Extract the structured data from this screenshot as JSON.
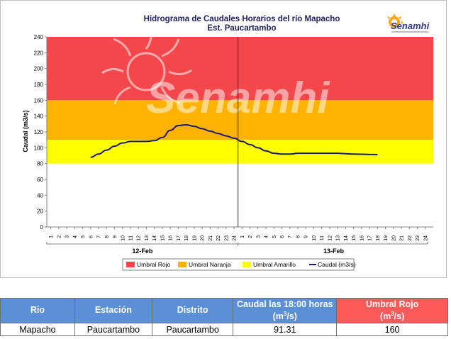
{
  "chart_data": {
    "type": "line",
    "title": "Hidrograma de Caudales Horarios del río Mapacho",
    "subtitle": "Est. Paucartambo",
    "ylabel": "Caudal  (m3/s)",
    "ylim": [
      0,
      240
    ],
    "yticks": [
      0,
      20,
      40,
      60,
      80,
      100,
      120,
      140,
      160,
      180,
      200,
      220,
      240
    ],
    "days": [
      {
        "label": "12-Feb",
        "hours": [
          "1",
          "2",
          "3",
          "4",
          "5",
          "6",
          "7",
          "8",
          "9",
          "10",
          "11",
          "12",
          "13",
          "14",
          "15",
          "16",
          "17",
          "18",
          "19",
          "20",
          "21",
          "22",
          "23",
          "24"
        ]
      },
      {
        "label": "13-Feb",
        "hours": [
          "1",
          "2",
          "3",
          "4",
          "5",
          "6",
          "7",
          "8",
          "9",
          "10",
          "11",
          "12",
          "13",
          "14",
          "15",
          "16",
          "17",
          "18",
          "19",
          "20",
          "21",
          "22",
          "23",
          "24"
        ]
      }
    ],
    "bands": [
      {
        "name": "Umbral Rojo",
        "from": 160,
        "to": 240,
        "color": "#f4474b"
      },
      {
        "name": "Umbral Naranja",
        "from": 110,
        "to": 160,
        "color": "#ffb300"
      },
      {
        "name": "Umbral Amarillo",
        "from": 80,
        "to": 110,
        "color": "#ffff00"
      }
    ],
    "series": [
      {
        "name": "Caudal (m3/s)",
        "color": "#1a1a6e",
        "x": [
          6,
          7,
          8,
          9,
          10,
          11,
          12,
          13,
          14,
          15,
          16,
          17,
          18,
          19,
          20,
          21,
          22,
          23,
          24,
          25,
          26,
          27,
          28,
          29,
          30,
          31,
          32,
          33,
          34,
          35,
          36,
          37,
          38,
          39,
          40,
          41,
          42
        ],
        "values": [
          88,
          92,
          97,
          102,
          106,
          108,
          108,
          108,
          109,
          113,
          122,
          128,
          129,
          127,
          124,
          121,
          118,
          115,
          112,
          108,
          104,
          100,
          96,
          93,
          92,
          92,
          93,
          93,
          93,
          93,
          93,
          93,
          92.5,
          92,
          91.8,
          91.5,
          91.3
        ]
      }
    ],
    "divider_at": 24.5,
    "legend": [
      "Umbral Rojo",
      "Umbral Naranja",
      "Umbral Amarillo",
      "Caudal (m3/s)"
    ],
    "legend_position": "bottom"
  },
  "watermark": "Senamhi",
  "logo": {
    "text": "Senamhi",
    "color": "#2e3a8c",
    "sun_color": "#f5a623"
  },
  "table": {
    "headers": {
      "rio": "Rio",
      "estacion": "Estación",
      "distrito": "Distrito",
      "caudal_a": "Caudal las 18:00 horas",
      "caudal_b_pre": "(m",
      "caudal_b_sup": "3",
      "caudal_b_post": "/s)",
      "umbral_a": "Umbral Rojo",
      "umbral_b_pre": "(m",
      "umbral_b_sup": "3",
      "umbral_b_post": "/s)"
    },
    "row": {
      "rio": "Mapacho",
      "estacion": "Paucartambo",
      "distrito": "Paucartambo",
      "caudal": "91.31",
      "umbral": "160"
    }
  }
}
